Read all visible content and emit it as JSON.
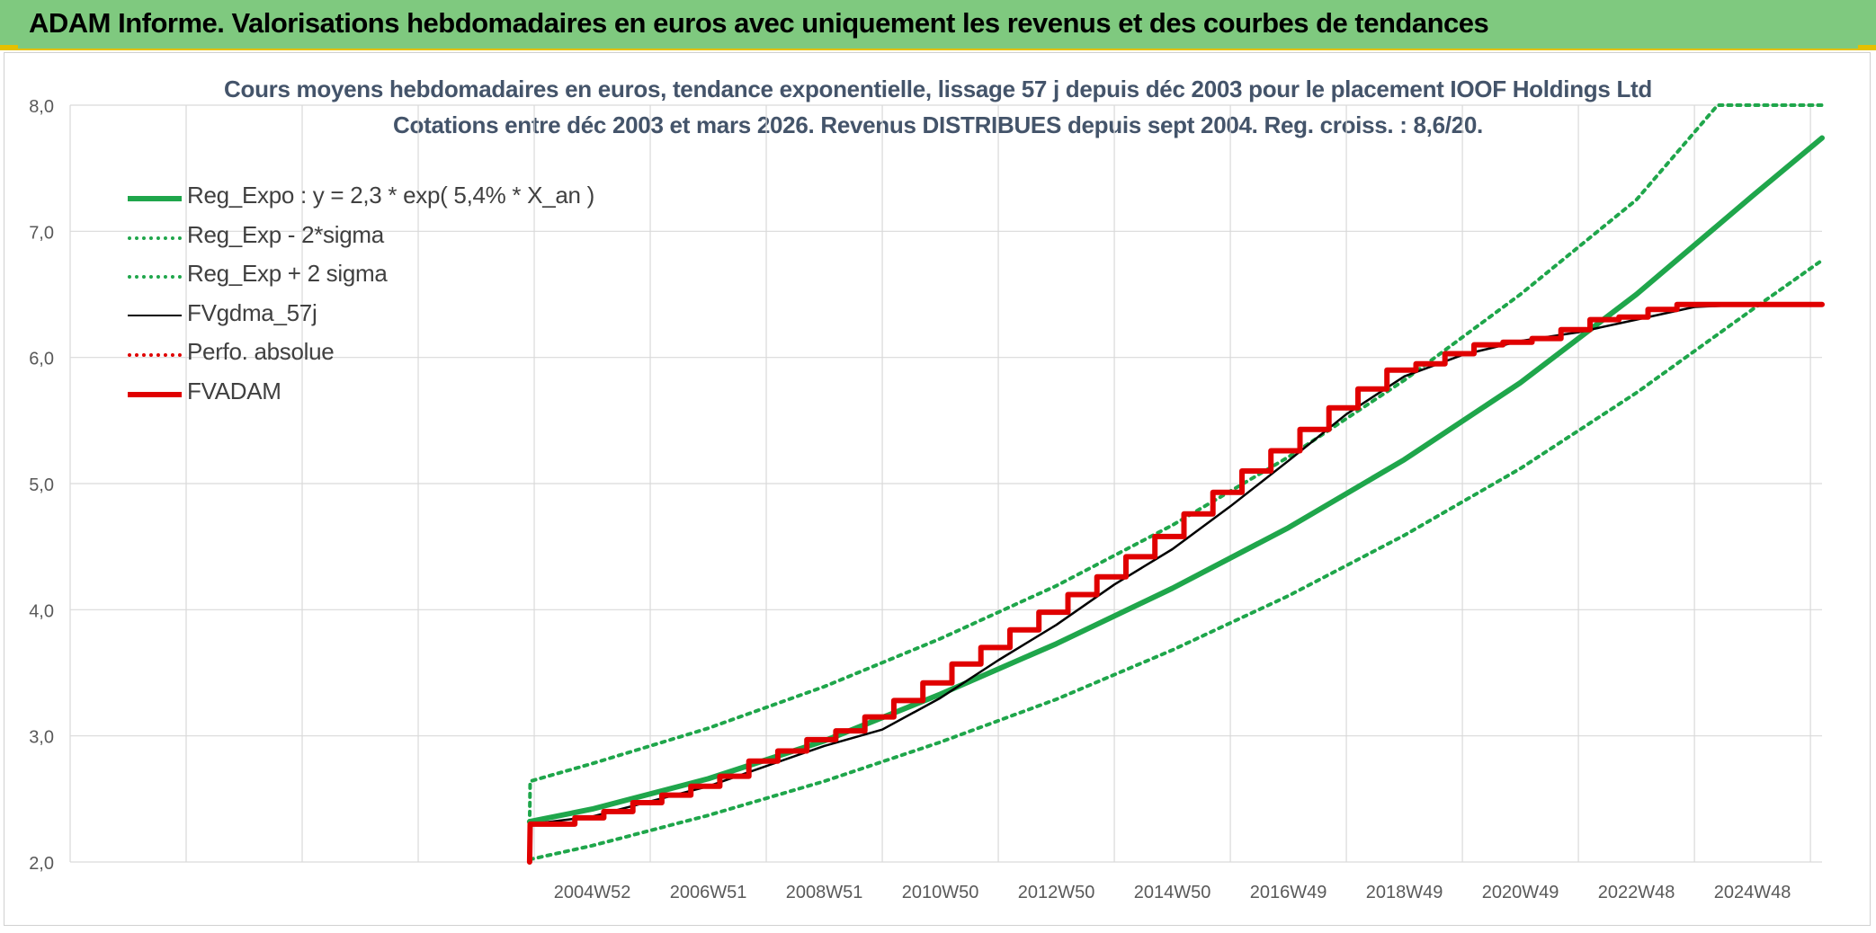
{
  "header": {
    "title": "ADAM Informe. Valorisations hebdomadaires en euros avec uniquement les revenus et des courbes de tendances"
  },
  "chart_data": {
    "type": "line",
    "title_line1": "Cours moyens hebdomadaires en euros, tendance exponentielle, lissage 57 j depuis déc 2003 pour le placement IOOF Holdings Ltd",
    "title_line2": "Cotations entre déc 2003 et mars 2026. Revenus DISTRIBUES depuis sept 2004. Reg. croiss. : 8,6/20.",
    "ylim": [
      2.0,
      8.0
    ],
    "yticks": [
      "2,0",
      "3,0",
      "4,0",
      "5,0",
      "6,0",
      "7,0",
      "8,0"
    ],
    "xlim": [
      1996.0,
      2026.2
    ],
    "xticks": [
      {
        "label": "2004W52",
        "x": 2005.0
      },
      {
        "label": "2006W51",
        "x": 2007.0
      },
      {
        "label": "2008W51",
        "x": 2009.0
      },
      {
        "label": "2010W50",
        "x": 2011.0
      },
      {
        "label": "2012W50",
        "x": 2013.0
      },
      {
        "label": "2014W50",
        "x": 2015.0
      },
      {
        "label": "2016W49",
        "x": 2017.0
      },
      {
        "label": "2018W49",
        "x": 2019.0
      },
      {
        "label": "2020W49",
        "x": 2021.0
      },
      {
        "label": "2022W48",
        "x": 2023.0
      },
      {
        "label": "2024W48",
        "x": 2025.0
      }
    ],
    "grid": true,
    "legend_position": "top-left",
    "series": [
      {
        "name": "Reg_Expo : y = 2,3 * exp( 5,4% *  X_an )",
        "color": "#1fa64b",
        "style": "solid",
        "x": [
          2003.92,
          2005,
          2007,
          2009,
          2011,
          2013,
          2015,
          2017,
          2019,
          2021,
          2023,
          2025,
          2026.2
        ],
        "y": [
          2.32,
          2.42,
          2.66,
          2.96,
          3.33,
          3.73,
          4.17,
          4.65,
          5.19,
          5.8,
          6.5,
          7.28,
          7.74
        ]
      },
      {
        "name": "Reg_Exp - 2*sigma",
        "color": "#1fa64b",
        "style": "dotted",
        "x": [
          2003.92,
          2005,
          2007,
          2009,
          2011,
          2013,
          2015,
          2017,
          2019,
          2021,
          2023,
          2025,
          2026.2
        ],
        "y": [
          2.02,
          2.13,
          2.37,
          2.64,
          2.95,
          3.29,
          3.68,
          4.11,
          4.59,
          5.12,
          5.72,
          6.38,
          6.77
        ]
      },
      {
        "name": "Reg_Exp + 2 sigma",
        "color": "#1fa64b",
        "style": "dotted",
        "x": [
          2003.92,
          2003.93,
          2005,
          2007,
          2009,
          2011,
          2013,
          2015,
          2017,
          2019,
          2021,
          2023,
          2024.4,
          2026.2
        ],
        "y": [
          2.3,
          2.64,
          2.78,
          3.06,
          3.39,
          3.77,
          4.19,
          4.67,
          5.21,
          5.82,
          6.5,
          7.25,
          8.0,
          8.0
        ]
      },
      {
        "name": "FVgdma_57j",
        "color": "#000000",
        "style": "solid",
        "x": [
          2003.95,
          2005,
          2006,
          2007,
          2008,
          2009,
          2010,
          2011,
          2012,
          2013,
          2014,
          2015,
          2016,
          2017,
          2018,
          2019,
          2020,
          2021,
          2022,
          2023,
          2024,
          2025,
          2026.2
        ],
        "y": [
          2.3,
          2.36,
          2.48,
          2.6,
          2.76,
          2.92,
          3.05,
          3.3,
          3.6,
          3.88,
          4.2,
          4.48,
          4.82,
          5.18,
          5.55,
          5.85,
          6.02,
          6.13,
          6.2,
          6.3,
          6.4,
          6.42,
          6.42
        ]
      },
      {
        "name": "Perfo. absolue",
        "color": "#e00000",
        "style": "dotted",
        "x": [],
        "y": []
      },
      {
        "name": "FVADAM",
        "color": "#e00000",
        "style": "solid",
        "x": [
          2003.92,
          2003.93,
          2004.7,
          2004.7,
          2005.2,
          2005.2,
          2005.7,
          2005.7,
          2006.2,
          2006.2,
          2006.7,
          2006.7,
          2007.2,
          2007.2,
          2007.7,
          2007.7,
          2008.2,
          2008.2,
          2008.7,
          2008.7,
          2009.2,
          2009.2,
          2009.7,
          2009.7,
          2010.2,
          2010.2,
          2010.7,
          2010.7,
          2011.2,
          2011.2,
          2011.7,
          2011.7,
          2012.2,
          2012.2,
          2012.7,
          2012.7,
          2013.2,
          2013.2,
          2013.7,
          2013.7,
          2014.2,
          2014.2,
          2014.7,
          2014.7,
          2015.2,
          2015.2,
          2015.7,
          2015.7,
          2016.2,
          2016.2,
          2016.7,
          2016.7,
          2017.2,
          2017.2,
          2017.7,
          2017.7,
          2018.2,
          2018.2,
          2018.7,
          2018.7,
          2019.2,
          2019.2,
          2019.7,
          2019.7,
          2020.2,
          2020.2,
          2020.7,
          2020.7,
          2021.2,
          2021.2,
          2021.7,
          2021.7,
          2022.2,
          2022.2,
          2022.7,
          2022.7,
          2023.2,
          2023.2,
          2023.7,
          2023.7,
          2024.2,
          2024.2,
          2026.2
        ],
        "y": [
          2.0,
          2.3,
          2.3,
          2.35,
          2.35,
          2.4,
          2.4,
          2.47,
          2.47,
          2.53,
          2.53,
          2.6,
          2.6,
          2.68,
          2.68,
          2.8,
          2.8,
          2.88,
          2.88,
          2.97,
          2.97,
          3.04,
          3.04,
          3.15,
          3.15,
          3.28,
          3.28,
          3.42,
          3.42,
          3.57,
          3.57,
          3.7,
          3.7,
          3.84,
          3.84,
          3.98,
          3.98,
          4.12,
          4.12,
          4.26,
          4.26,
          4.42,
          4.42,
          4.58,
          4.58,
          4.76,
          4.76,
          4.93,
          4.93,
          5.1,
          5.1,
          5.26,
          5.26,
          5.43,
          5.43,
          5.6,
          5.6,
          5.75,
          5.75,
          5.9,
          5.9,
          5.95,
          5.95,
          6.03,
          6.03,
          6.1,
          6.1,
          6.12,
          6.12,
          6.15,
          6.15,
          6.22,
          6.22,
          6.3,
          6.3,
          6.32,
          6.32,
          6.38,
          6.38,
          6.42,
          6.42,
          6.42,
          6.42
        ]
      }
    ]
  }
}
